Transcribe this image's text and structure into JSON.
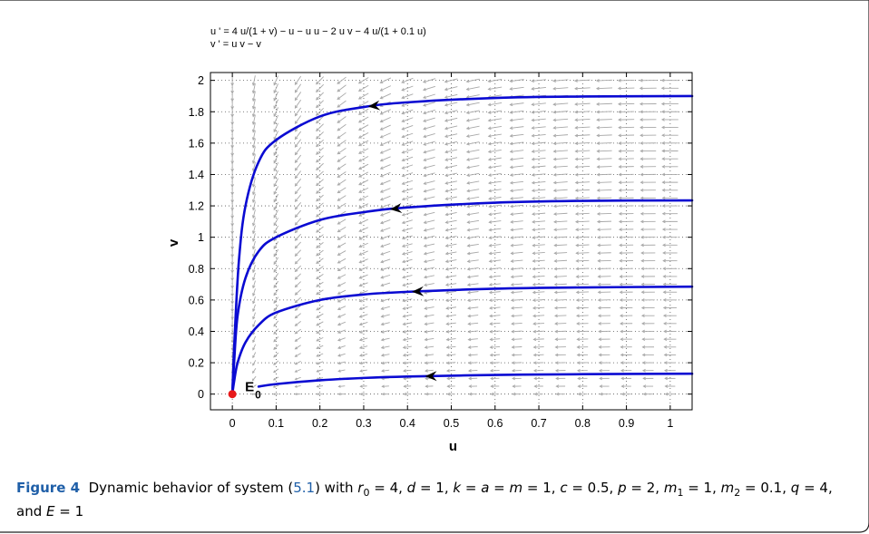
{
  "figure": {
    "equations": [
      "u ' = 4 u/(1 + v) − u − u u − 2 u v − 4 u/(1 + 0.1 u)",
      "v ' = u v − v"
    ],
    "caption": {
      "label": "Figure 4",
      "text_before_ref": "Dynamic behavior of system (",
      "ref": "5.1",
      "text_after_ref": ") with",
      "params": [
        {
          "sym": "r",
          "sub": "0",
          "val": "4"
        },
        {
          "sym": "d",
          "sub": "",
          "val": "1"
        },
        {
          "sym": "k = a = m",
          "sub": "",
          "val": "1"
        },
        {
          "sym": "c",
          "sub": "",
          "val": "0.5"
        },
        {
          "sym": "p",
          "sub": "",
          "val": "2"
        },
        {
          "sym": "m",
          "sub": "1",
          "val": "1"
        },
        {
          "sym": "m",
          "sub": "2",
          "val": "0.1"
        },
        {
          "sym": "q",
          "sub": "",
          "val": "4"
        },
        {
          "sym": "E",
          "sub": "",
          "val": "1"
        }
      ],
      "and_word": "and"
    }
  },
  "chart_data": {
    "type": "line",
    "xlabel": "u",
    "ylabel": "v",
    "xlim": [
      -0.05,
      1.05
    ],
    "ylim": [
      -0.1,
      2.05
    ],
    "x_ticks": [
      "0",
      "0.1",
      "0.2",
      "0.3",
      "0.4",
      "0.5",
      "0.6",
      "0.7",
      "0.8",
      "0.9",
      "1"
    ],
    "y_ticks": [
      "0",
      "0.2",
      "0.4",
      "0.6",
      "0.8",
      "1",
      "1.2",
      "1.4",
      "1.6",
      "1.8",
      "2"
    ],
    "grid": true,
    "vector_field": true,
    "equilibrium": {
      "label": "E",
      "label_sub": "0",
      "u": 0,
      "v": 0,
      "color": "#e8191a"
    },
    "trajectory_color": "#0a0ad2",
    "field_color": "#a8a8a8",
    "series": [
      {
        "x": [
          1.05,
          0.8,
          0.6,
          0.4,
          0.3,
          0.2,
          0.1,
          0.06,
          0.03,
          0.015,
          0.005,
          0.0
        ],
        "y": [
          1.9,
          1.897,
          1.888,
          1.86,
          1.83,
          1.77,
          1.62,
          1.48,
          1.2,
          0.85,
          0.35,
          0.0
        ],
        "arrow_at": 0.31
      },
      {
        "x": [
          1.05,
          0.8,
          0.6,
          0.4,
          0.3,
          0.2,
          0.1,
          0.06,
          0.03,
          0.012,
          0.004,
          0.0
        ],
        "y": [
          1.235,
          1.232,
          1.22,
          1.19,
          1.16,
          1.11,
          1.0,
          0.91,
          0.74,
          0.5,
          0.2,
          0.0
        ],
        "arrow_at": 0.36
      },
      {
        "x": [
          1.05,
          0.8,
          0.6,
          0.4,
          0.3,
          0.2,
          0.1,
          0.06,
          0.03,
          0.012,
          0.004,
          0.0
        ],
        "y": [
          0.685,
          0.68,
          0.672,
          0.652,
          0.635,
          0.6,
          0.52,
          0.44,
          0.33,
          0.2,
          0.08,
          0.0
        ],
        "arrow_at": 0.41
      },
      {
        "x": [
          1.05,
          0.8,
          0.6,
          0.4,
          0.3,
          0.2,
          0.1,
          0.06
        ],
        "y": [
          0.13,
          0.127,
          0.122,
          0.112,
          0.103,
          0.088,
          0.064,
          0.048
        ],
        "arrow_at": 0.44
      }
    ]
  }
}
